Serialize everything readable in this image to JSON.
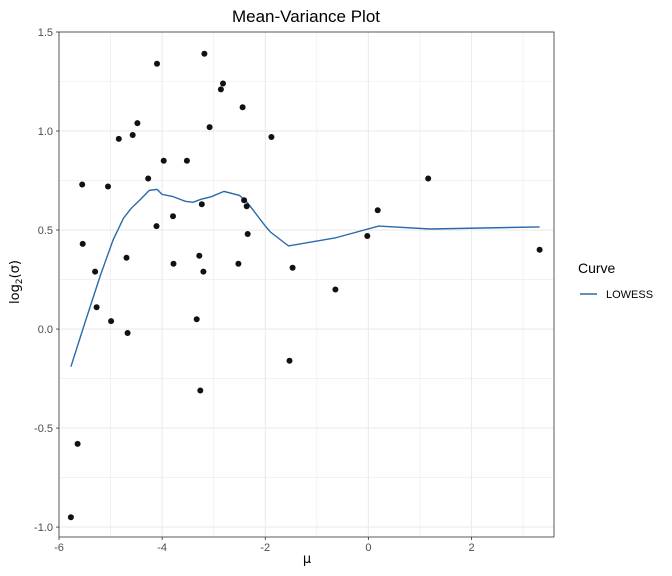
{
  "chart_data": {
    "type": "scatter",
    "title": "Mean-Variance Plot",
    "xlabel": "μ",
    "ylabel": {
      "prefix": "log",
      "sub": "2",
      "suffix": "(σ)"
    },
    "xlim": [
      -6.0,
      3.6
    ],
    "ylim": [
      -1.05,
      1.5
    ],
    "xticks": [
      -6,
      -4,
      -2,
      0,
      2
    ],
    "yticks": [
      -1.0,
      -0.5,
      0.0,
      0.5,
      1.0,
      1.5
    ],
    "ytick_labels": [
      "-1.0",
      "-0.5",
      "0.0",
      "0.5",
      "1.0",
      "1.5"
    ],
    "xtick_labels": [
      "-6",
      "-4",
      "-2",
      "0",
      "2"
    ],
    "grid": true,
    "colors": {
      "points": "#111111",
      "lowess": "#2b6aab",
      "grid": "#ebebeb",
      "panel_border": "#333333"
    },
    "points": [
      {
        "x": -5.77,
        "y": -0.95
      },
      {
        "x": -5.64,
        "y": -0.58
      },
      {
        "x": -5.55,
        "y": 0.73
      },
      {
        "x": -5.54,
        "y": 0.43
      },
      {
        "x": -5.3,
        "y": 0.29
      },
      {
        "x": -5.27,
        "y": 0.11
      },
      {
        "x": -5.05,
        "y": 0.72
      },
      {
        "x": -4.99,
        "y": 0.04
      },
      {
        "x": -4.84,
        "y": 0.96
      },
      {
        "x": -4.69,
        "y": 0.36
      },
      {
        "x": -4.67,
        "y": -0.02
      },
      {
        "x": -4.57,
        "y": 0.98
      },
      {
        "x": -4.48,
        "y": 1.04
      },
      {
        "x": -4.27,
        "y": 0.76
      },
      {
        "x": -4.11,
        "y": 0.52
      },
      {
        "x": -4.1,
        "y": 1.34
      },
      {
        "x": -3.97,
        "y": 0.85
      },
      {
        "x": -3.79,
        "y": 0.57
      },
      {
        "x": -3.78,
        "y": 0.33
      },
      {
        "x": -3.52,
        "y": 0.85
      },
      {
        "x": -3.33,
        "y": 0.05
      },
      {
        "x": -3.28,
        "y": 0.37
      },
      {
        "x": -3.26,
        "y": -0.31
      },
      {
        "x": -3.23,
        "y": 0.63
      },
      {
        "x": -3.2,
        "y": 0.29
      },
      {
        "x": -3.18,
        "y": 1.39
      },
      {
        "x": -3.08,
        "y": 1.02
      },
      {
        "x": -2.86,
        "y": 1.21
      },
      {
        "x": -2.82,
        "y": 1.24
      },
      {
        "x": -2.52,
        "y": 0.33
      },
      {
        "x": -2.44,
        "y": 1.12
      },
      {
        "x": -2.41,
        "y": 0.65
      },
      {
        "x": -2.36,
        "y": 0.62
      },
      {
        "x": -2.34,
        "y": 0.48
      },
      {
        "x": -1.88,
        "y": 0.97
      },
      {
        "x": -1.53,
        "y": -0.16
      },
      {
        "x": -1.47,
        "y": 0.31
      },
      {
        "x": -0.64,
        "y": 0.2
      },
      {
        "x": -0.02,
        "y": 0.47
      },
      {
        "x": 0.18,
        "y": 0.6
      },
      {
        "x": 1.16,
        "y": 0.76
      },
      {
        "x": 3.32,
        "y": 0.4
      }
    ],
    "series": [
      {
        "name": "LOWESS",
        "x": [
          -5.77,
          -5.5,
          -5.2,
          -4.95,
          -4.75,
          -4.6,
          -4.4,
          -4.25,
          -4.1,
          -4.0,
          -3.8,
          -3.55,
          -3.4,
          -3.25,
          -3.05,
          -2.8,
          -2.5,
          -2.35,
          -2.0,
          -1.9,
          -1.55,
          -0.65,
          0.2,
          1.2,
          3.32
        ],
        "y": [
          -0.19,
          0.03,
          0.27,
          0.45,
          0.56,
          0.61,
          0.66,
          0.7,
          0.705,
          0.68,
          0.67,
          0.645,
          0.64,
          0.655,
          0.668,
          0.695,
          0.675,
          0.64,
          0.52,
          0.49,
          0.42,
          0.46,
          0.52,
          0.505,
          0.516
        ]
      }
    ],
    "legend": {
      "title": "Curve",
      "placement": "right",
      "entries": [
        "LOWESS"
      ]
    }
  }
}
